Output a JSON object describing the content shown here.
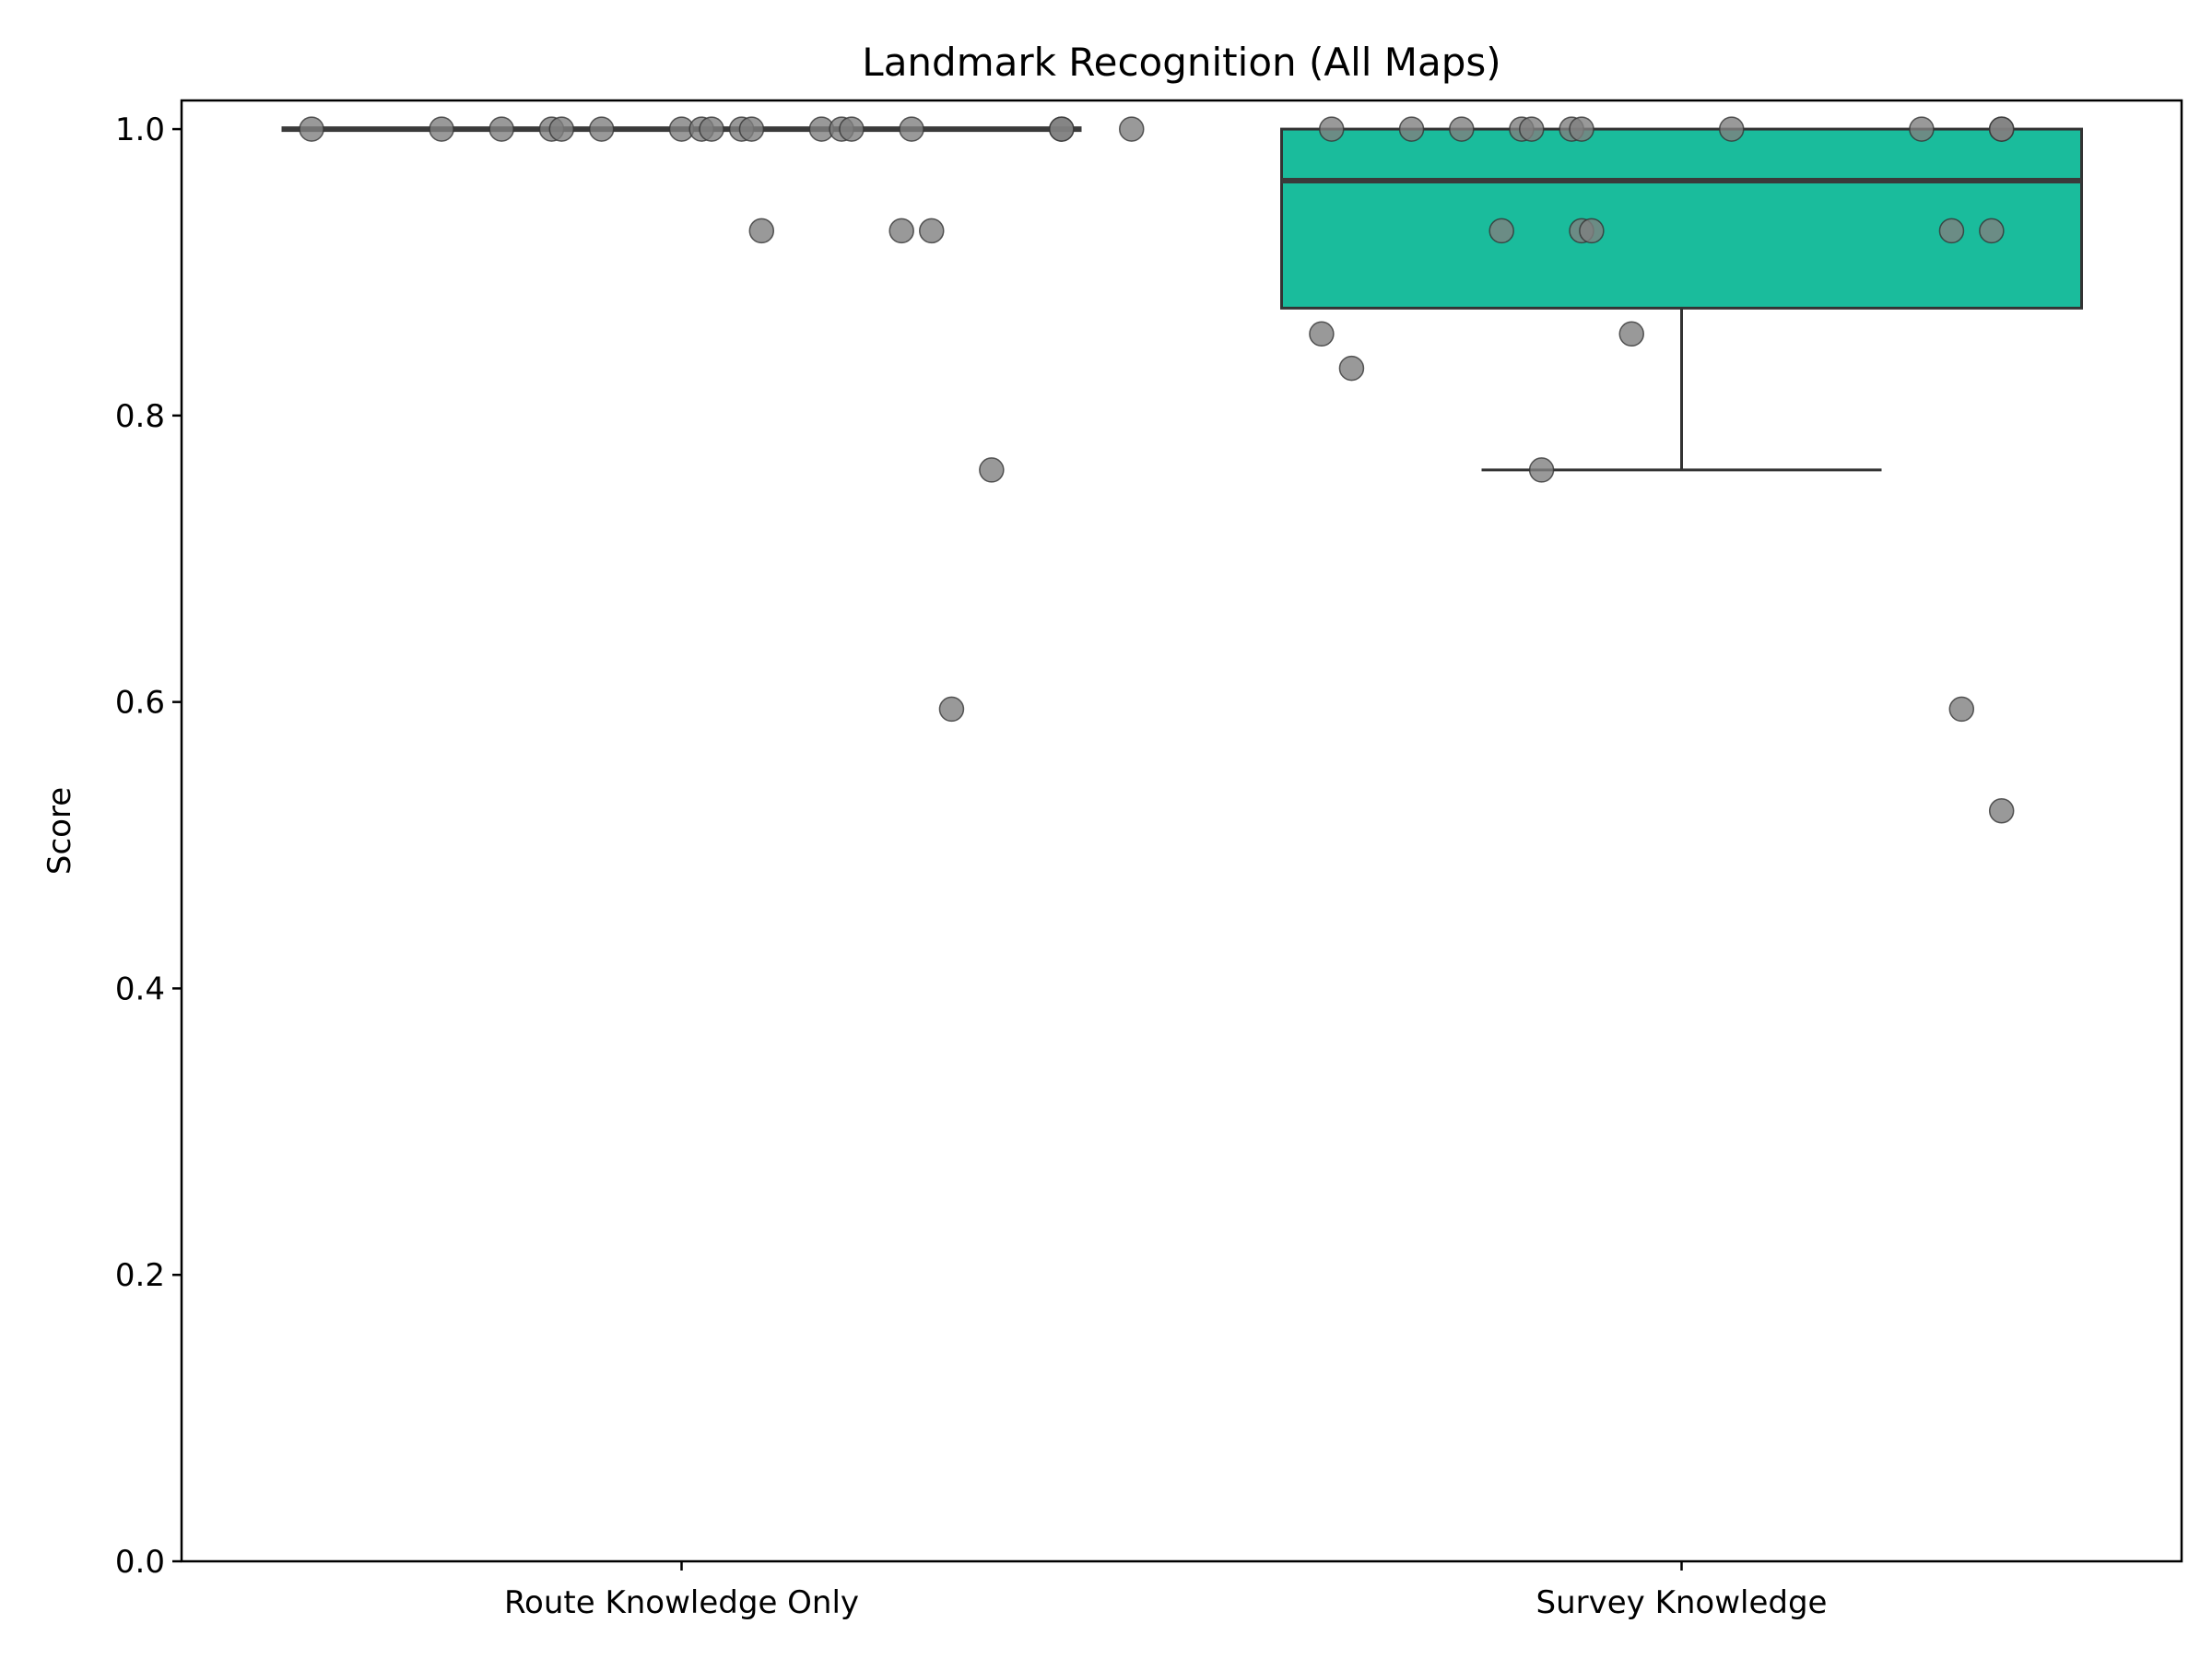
{
  "chart_data": {
    "type": "box",
    "title": "Landmark Recognition (All Maps)",
    "xlabel": "",
    "ylabel": "Score",
    "ylim": [
      0,
      1.02
    ],
    "yticks": [
      0.0,
      0.2,
      0.4,
      0.6,
      0.8,
      1.0
    ],
    "ytick_labels": [
      "0.0",
      "0.2",
      "0.4",
      "0.6",
      "0.8",
      "1.0"
    ],
    "categories": [
      "Route Knowledge Only",
      "Survey Knowledge"
    ],
    "grid": false,
    "legend": "none",
    "boxes": [
      {
        "category": "Route Knowledge Only",
        "q1": 1.0,
        "median": 1.0,
        "q3": 1.0,
        "whisker_low": 1.0,
        "whisker_high": 1.0,
        "color": "#1abc9c"
      },
      {
        "category": "Survey Knowledge",
        "q1": 0.875,
        "median": 0.964,
        "q3": 1.0,
        "whisker_low": 0.762,
        "whisker_high": 1.0,
        "color": "#1abc9c"
      }
    ],
    "points": [
      {
        "category": "Route Knowledge Only",
        "values": [
          1.0,
          1.0,
          1.0,
          1.0,
          1.0,
          1.0,
          1.0,
          1.0,
          1.0,
          1.0,
          1.0,
          1.0,
          1.0,
          1.0,
          1.0,
          1.0,
          1.0,
          1.0,
          0.929,
          0.929,
          0.929,
          0.762,
          0.595
        ],
        "jitter": [
          -0.37,
          -0.24,
          -0.18,
          -0.13,
          -0.12,
          -0.08,
          0.0,
          0.02,
          0.03,
          0.06,
          0.07,
          0.14,
          0.16,
          0.17,
          0.23,
          0.38,
          0.38,
          0.45,
          0.08,
          0.22,
          0.25,
          0.31,
          0.27
        ],
        "color": "#808080"
      },
      {
        "category": "Survey Knowledge",
        "values": [
          1.0,
          1.0,
          1.0,
          1.0,
          1.0,
          1.0,
          1.0,
          1.0,
          1.0,
          1.0,
          1.0,
          0.929,
          0.929,
          0.929,
          0.929,
          0.929,
          0.857,
          0.857,
          0.833,
          0.762,
          0.595,
          0.524
        ],
        "jitter": [
          -0.35,
          -0.27,
          -0.22,
          -0.16,
          -0.15,
          -0.11,
          -0.1,
          0.05,
          0.24,
          0.32,
          0.32,
          -0.18,
          -0.1,
          -0.09,
          0.27,
          0.31,
          -0.36,
          -0.05,
          -0.33,
          -0.14,
          0.28,
          0.32
        ],
        "color": "#808080"
      }
    ]
  }
}
